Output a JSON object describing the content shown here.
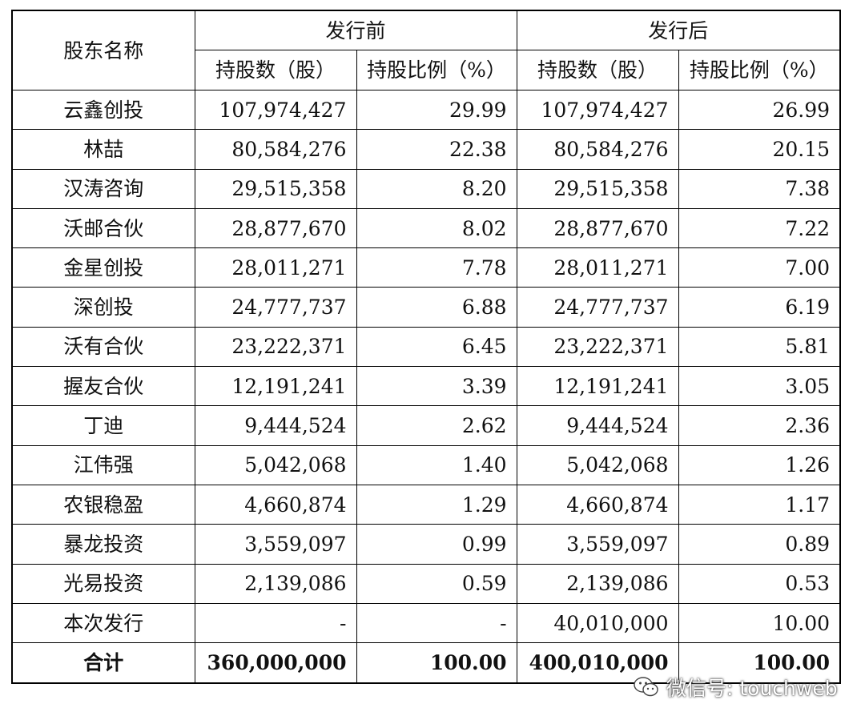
{
  "headers": {
    "shareholder": "股东名称",
    "before_group": "发行前",
    "after_group": "发行后",
    "shares_col": "持股数（股）",
    "ratio_col": "持股比例（%）"
  },
  "rows": [
    {
      "name": "云鑫创投",
      "before_shares": "107,974,427",
      "before_pct": "29.99",
      "after_shares": "107,974,427",
      "after_pct": "26.99"
    },
    {
      "name": "林喆",
      "before_shares": "80,584,276",
      "before_pct": "22.38",
      "after_shares": "80,584,276",
      "after_pct": "20.15"
    },
    {
      "name": "汉涛咨询",
      "before_shares": "29,515,358",
      "before_pct": "8.20",
      "after_shares": "29,515,358",
      "after_pct": "7.38"
    },
    {
      "name": "沃邮合伙",
      "before_shares": "28,877,670",
      "before_pct": "8.02",
      "after_shares": "28,877,670",
      "after_pct": "7.22"
    },
    {
      "name": "金星创投",
      "before_shares": "28,011,271",
      "before_pct": "7.78",
      "after_shares": "28,011,271",
      "after_pct": "7.00"
    },
    {
      "name": "深创投",
      "before_shares": "24,777,737",
      "before_pct": "6.88",
      "after_shares": "24,777,737",
      "after_pct": "6.19"
    },
    {
      "name": "沃有合伙",
      "before_shares": "23,222,371",
      "before_pct": "6.45",
      "after_shares": "23,222,371",
      "after_pct": "5.81"
    },
    {
      "name": "握友合伙",
      "before_shares": "12,191,241",
      "before_pct": "3.39",
      "after_shares": "12,191,241",
      "after_pct": "3.05"
    },
    {
      "name": "丁迪",
      "before_shares": "9,444,524",
      "before_pct": "2.62",
      "after_shares": "9,444,524",
      "after_pct": "2.36"
    },
    {
      "name": "江伟强",
      "before_shares": "5,042,068",
      "before_pct": "1.40",
      "after_shares": "5,042,068",
      "after_pct": "1.26"
    },
    {
      "name": "农银稳盈",
      "before_shares": "4,660,874",
      "before_pct": "1.29",
      "after_shares": "4,660,874",
      "after_pct": "1.17"
    },
    {
      "name": "暴龙投资",
      "before_shares": "3,559,097",
      "before_pct": "0.99",
      "after_shares": "3,559,097",
      "after_pct": "0.89"
    },
    {
      "name": "光易投资",
      "before_shares": "2,139,086",
      "before_pct": "0.59",
      "after_shares": "2,139,086",
      "after_pct": "0.53"
    },
    {
      "name": "本次发行",
      "before_shares": "-",
      "before_pct": "-",
      "after_shares": "40,010,000",
      "after_pct": "10.00"
    }
  ],
  "total": {
    "name": "合计",
    "before_shares": "360,000,000",
    "before_pct": "100.00",
    "after_shares": "400,010,000",
    "after_pct": "100.00"
  },
  "watermark": {
    "text": "微信号: touchweb",
    "icon": "wechat-icon"
  }
}
